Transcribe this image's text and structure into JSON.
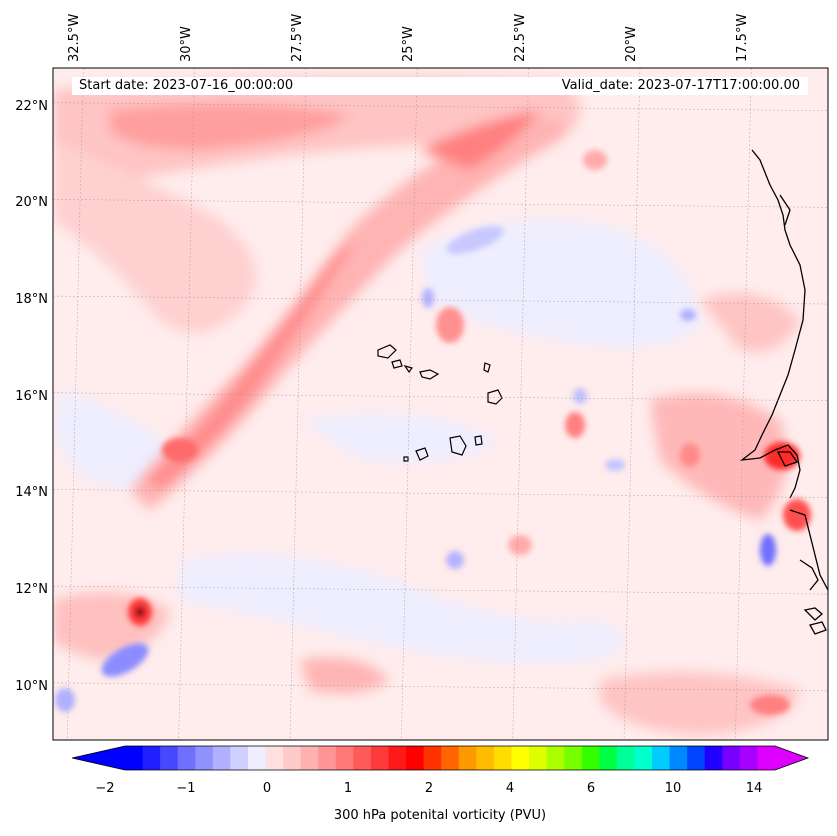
{
  "header": {
    "start_date": "Start date: 2023-07-16_00:00:00",
    "valid_date": "Valid_date: 2023-07-17T17:00:00.00"
  },
  "map": {
    "lon_range": [
      -33.0,
      -15.6
    ],
    "lat_range": [
      8.9,
      22.8
    ],
    "lon_ticks": [
      {
        "value": -32.5,
        "label": "32.5°W"
      },
      {
        "value": -30.0,
        "label": "30°W"
      },
      {
        "value": -27.5,
        "label": "27.5°W"
      },
      {
        "value": -25.0,
        "label": "25°W"
      },
      {
        "value": -22.5,
        "label": "22.5°W"
      },
      {
        "value": -20.0,
        "label": "20°W"
      },
      {
        "value": -17.5,
        "label": "17.5°W"
      }
    ],
    "lat_ticks": [
      {
        "value": 22,
        "label": "22°N"
      },
      {
        "value": 20,
        "label": "20°N"
      },
      {
        "value": 18,
        "label": "18°N"
      },
      {
        "value": 16,
        "label": "16°N"
      },
      {
        "value": 14,
        "label": "14°N"
      },
      {
        "value": 12,
        "label": "12°N"
      },
      {
        "value": 10,
        "label": "10°N"
      }
    ],
    "gridlines": true
  },
  "colorbar": {
    "title": "300 hPa potenital vorticity (PVU)",
    "ticks": [
      "−2",
      "−1",
      "0",
      "1",
      "2",
      "4",
      "6",
      "10",
      "14"
    ],
    "colors": [
      "#0000ff",
      "#2020ff",
      "#4848ff",
      "#7070ff",
      "#9090ff",
      "#b0b0ff",
      "#d0d0ff",
      "#eeeeff",
      "#ffe0e0",
      "#ffcaca",
      "#ffb0b0",
      "#ff9494",
      "#ff7878",
      "#ff5a5a",
      "#ff3a3a",
      "#ff1a1a",
      "#ff0000",
      "#ff3300",
      "#ff6600",
      "#ff9900",
      "#ffbb00",
      "#ffdd00",
      "#ffff00",
      "#ddff00",
      "#aaff00",
      "#77ff00",
      "#33ff00",
      "#00ff44",
      "#00ff99",
      "#00ffcc",
      "#00ccff",
      "#0088ff",
      "#0044ff",
      "#2200ff",
      "#7700ff",
      "#aa00ff",
      "#dd00ff"
    ]
  }
}
